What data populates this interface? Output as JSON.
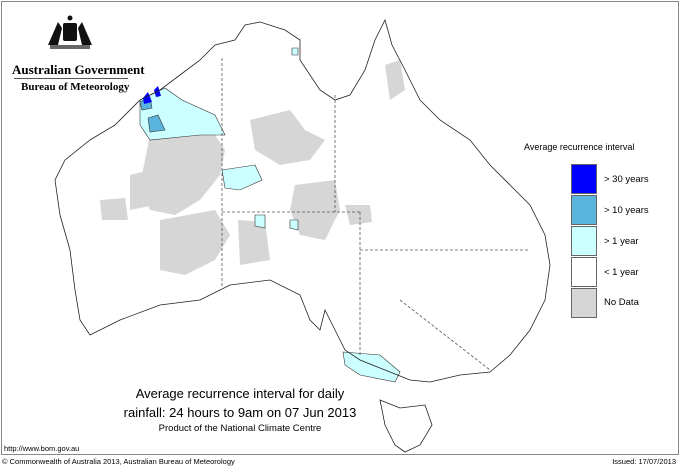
{
  "header": {
    "government": "Australian Government",
    "bureau": "Bureau of Meteorology",
    "logo_icon": "coat-of-arms-icon"
  },
  "legend": {
    "title": "Average recurrence interval",
    "items": [
      {
        "label": "> 30 years",
        "color": "#0000ff"
      },
      {
        "label": "> 10 years",
        "color": "#5ab4dc"
      },
      {
        "label": "> 1 year",
        "color": "#ccffff"
      },
      {
        "label": "< 1 year",
        "color": "#ffffff"
      },
      {
        "label": "No Data",
        "color": "#d6d6d6"
      }
    ]
  },
  "title": {
    "line1": "Average recurrence interval for daily",
    "line2": "rainfall: 24 hours to 9am on 07 Jun 2013",
    "line3": "Product of the National Climate Centre"
  },
  "footer": {
    "url": "http://www.bom.gov.au",
    "copyright": "© Commonwealth of Australia 2013, Australian Bureau of Meteorology",
    "issued": "Issued: 17/07/2013"
  }
}
